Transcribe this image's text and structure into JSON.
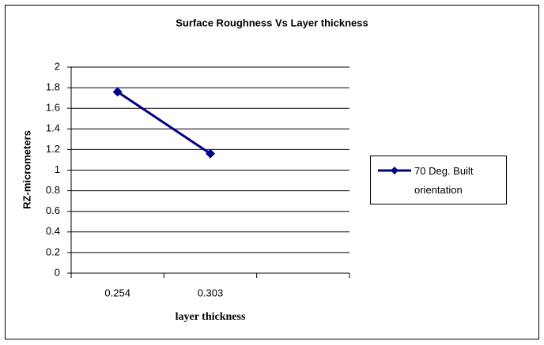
{
  "chart_data": {
    "type": "line",
    "title": "Surface Roughness Vs Layer thickness",
    "x_label": "layer thickness",
    "y_label": "RZ-micrometers",
    "categories": [
      "0.254",
      "0.303",
      null
    ],
    "series": [
      {
        "name": "70 Deg. Built orientation",
        "color": "#000080",
        "values": [
          1.76,
          1.16,
          null
        ]
      }
    ],
    "ylim": [
      0,
      2
    ],
    "yticks": [
      0,
      0.2,
      0.4,
      0.6,
      0.8,
      1,
      1.2,
      1.4,
      1.6,
      1.8,
      2
    ],
    "grid": true,
    "legend": "right"
  }
}
